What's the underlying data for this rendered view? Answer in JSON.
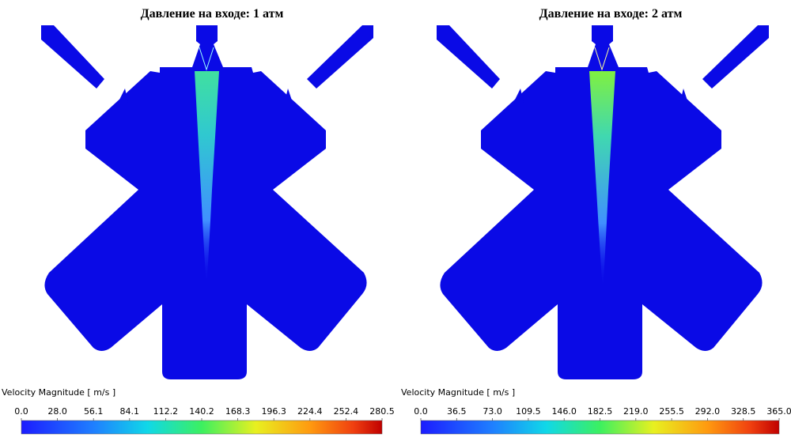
{
  "panels": [
    {
      "title": "Давление на входе: 1 атм",
      "legend_title": "Velocity Magnitude [ m/s ]",
      "ticks": [
        "0.0",
        "28.0",
        "56.1",
        "84.1",
        "112.2",
        "140.2",
        "168.3",
        "196.3",
        "224.4",
        "252.4",
        "280.5"
      ]
    },
    {
      "title": "Давление на входе: 2 атм",
      "legend_title": "Velocity Magnitude [ m/s ]",
      "ticks": [
        "0.0",
        "36.5",
        "73.0",
        "109.5",
        "146.0",
        "182.5",
        "219.0",
        "255.5",
        "292.0",
        "328.5",
        "365.0"
      ]
    }
  ]
}
